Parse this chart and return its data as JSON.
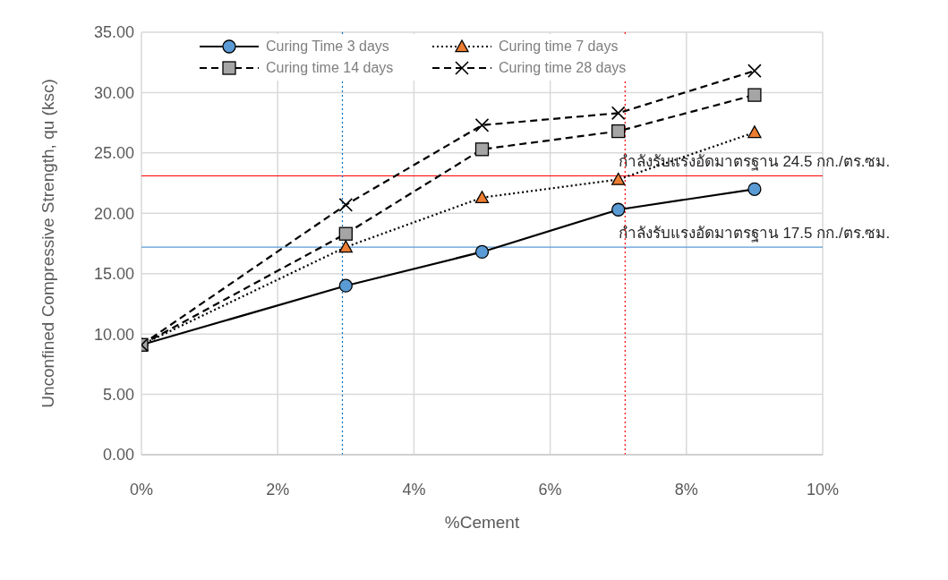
{
  "chart_data": {
    "type": "line",
    "xlabel": "%Cement",
    "ylabel": "Unconfined Compressive Strength, qu (ksc)",
    "x": [
      0,
      3,
      5,
      7,
      9
    ],
    "series": [
      {
        "name": "Curing Time 3 days",
        "color": "#5b9bd5",
        "marker": "circle",
        "line_style": "solid",
        "values": [
          9.1,
          14.0,
          16.8,
          20.3,
          22.0
        ]
      },
      {
        "name": "Curing time 7 days",
        "color": "#ed7d31",
        "marker": "triangle",
        "line_style": "dotted",
        "values": [
          9.1,
          17.2,
          21.3,
          22.8,
          26.7
        ]
      },
      {
        "name": "Curing time 14 days",
        "color": "#a5a5a5",
        "marker": "square",
        "line_style": "dashed",
        "values": [
          9.1,
          18.3,
          25.3,
          26.8,
          29.8
        ]
      },
      {
        "name": "Curing time 28 days",
        "color": "#000000",
        "marker": "cross",
        "line_style": "dashed",
        "values": [
          9.1,
          20.7,
          27.3,
          28.3,
          31.8
        ]
      }
    ],
    "xlim": [
      0,
      10
    ],
    "xticks": [
      {
        "value": 0,
        "label": "0%"
      },
      {
        "value": 2,
        "label": "2%"
      },
      {
        "value": 4,
        "label": "4%"
      },
      {
        "value": 6,
        "label": "6%"
      },
      {
        "value": 8,
        "label": "8%"
      },
      {
        "value": 10,
        "label": "10%"
      }
    ],
    "ylim": [
      0,
      35
    ],
    "yticks": [
      {
        "value": 0,
        "label": "0.00"
      },
      {
        "value": 5,
        "label": "5.00"
      },
      {
        "value": 10,
        "label": "10.00"
      },
      {
        "value": 15,
        "label": "15.00"
      },
      {
        "value": 20,
        "label": "20.00"
      },
      {
        "value": 25,
        "label": "25.00"
      },
      {
        "value": 30,
        "label": "30.00"
      },
      {
        "value": 35,
        "label": "35.00"
      }
    ],
    "ref_lines": [
      {
        "axis": "y",
        "value": 23.1,
        "label": "กำลังรับแรงอัดมาตรฐาน 24.5 กก./ตร.ซม.",
        "color": "#ff0000",
        "line_style": "solid"
      },
      {
        "axis": "y",
        "value": 17.2,
        "label": "กำลังรับแรงอัดมาตรฐาน 17.5 กก./ตร.ซม.",
        "color": "#5b9bd5",
        "line_style": "solid"
      },
      {
        "axis": "x",
        "value": 2.95,
        "color": "#0070c0",
        "line_style": "dashed"
      },
      {
        "axis": "x",
        "value": 7.1,
        "color": "#ff0000",
        "line_style": "dashed"
      }
    ],
    "grid": true,
    "legend": "top left"
  }
}
